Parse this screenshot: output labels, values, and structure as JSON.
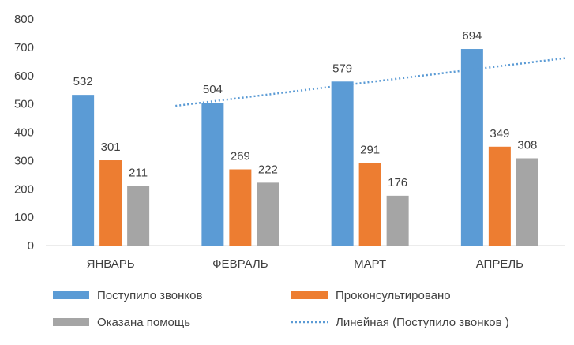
{
  "chart_data": {
    "type": "bar",
    "categories": [
      "ЯНВАРЬ",
      "ФЕВРАЛЬ",
      "МАРТ",
      "АПРЕЛЬ"
    ],
    "series": [
      {
        "name": "Поступило звонков",
        "values": [
          532,
          504,
          579,
          694
        ],
        "color": "#5b9bd5"
      },
      {
        "name": "Проконсультировано",
        "values": [
          301,
          269,
          291,
          349
        ],
        "color": "#ed7d31"
      },
      {
        "name": "Оказана помощь",
        "values": [
          211,
          222,
          176,
          308
        ],
        "color": "#a5a5a5"
      }
    ],
    "trendline": {
      "name": "Линейная (Поступило звонков )",
      "type": "linear",
      "of_series": "Поступило звонков",
      "color": "#5b9bd5"
    },
    "ylim": [
      0,
      800
    ],
    "yticks": [
      0,
      100,
      200,
      300,
      400,
      500,
      600,
      700,
      800
    ],
    "title": "",
    "xlabel": "",
    "ylabel": "",
    "grid": false,
    "legend": "bottom"
  }
}
